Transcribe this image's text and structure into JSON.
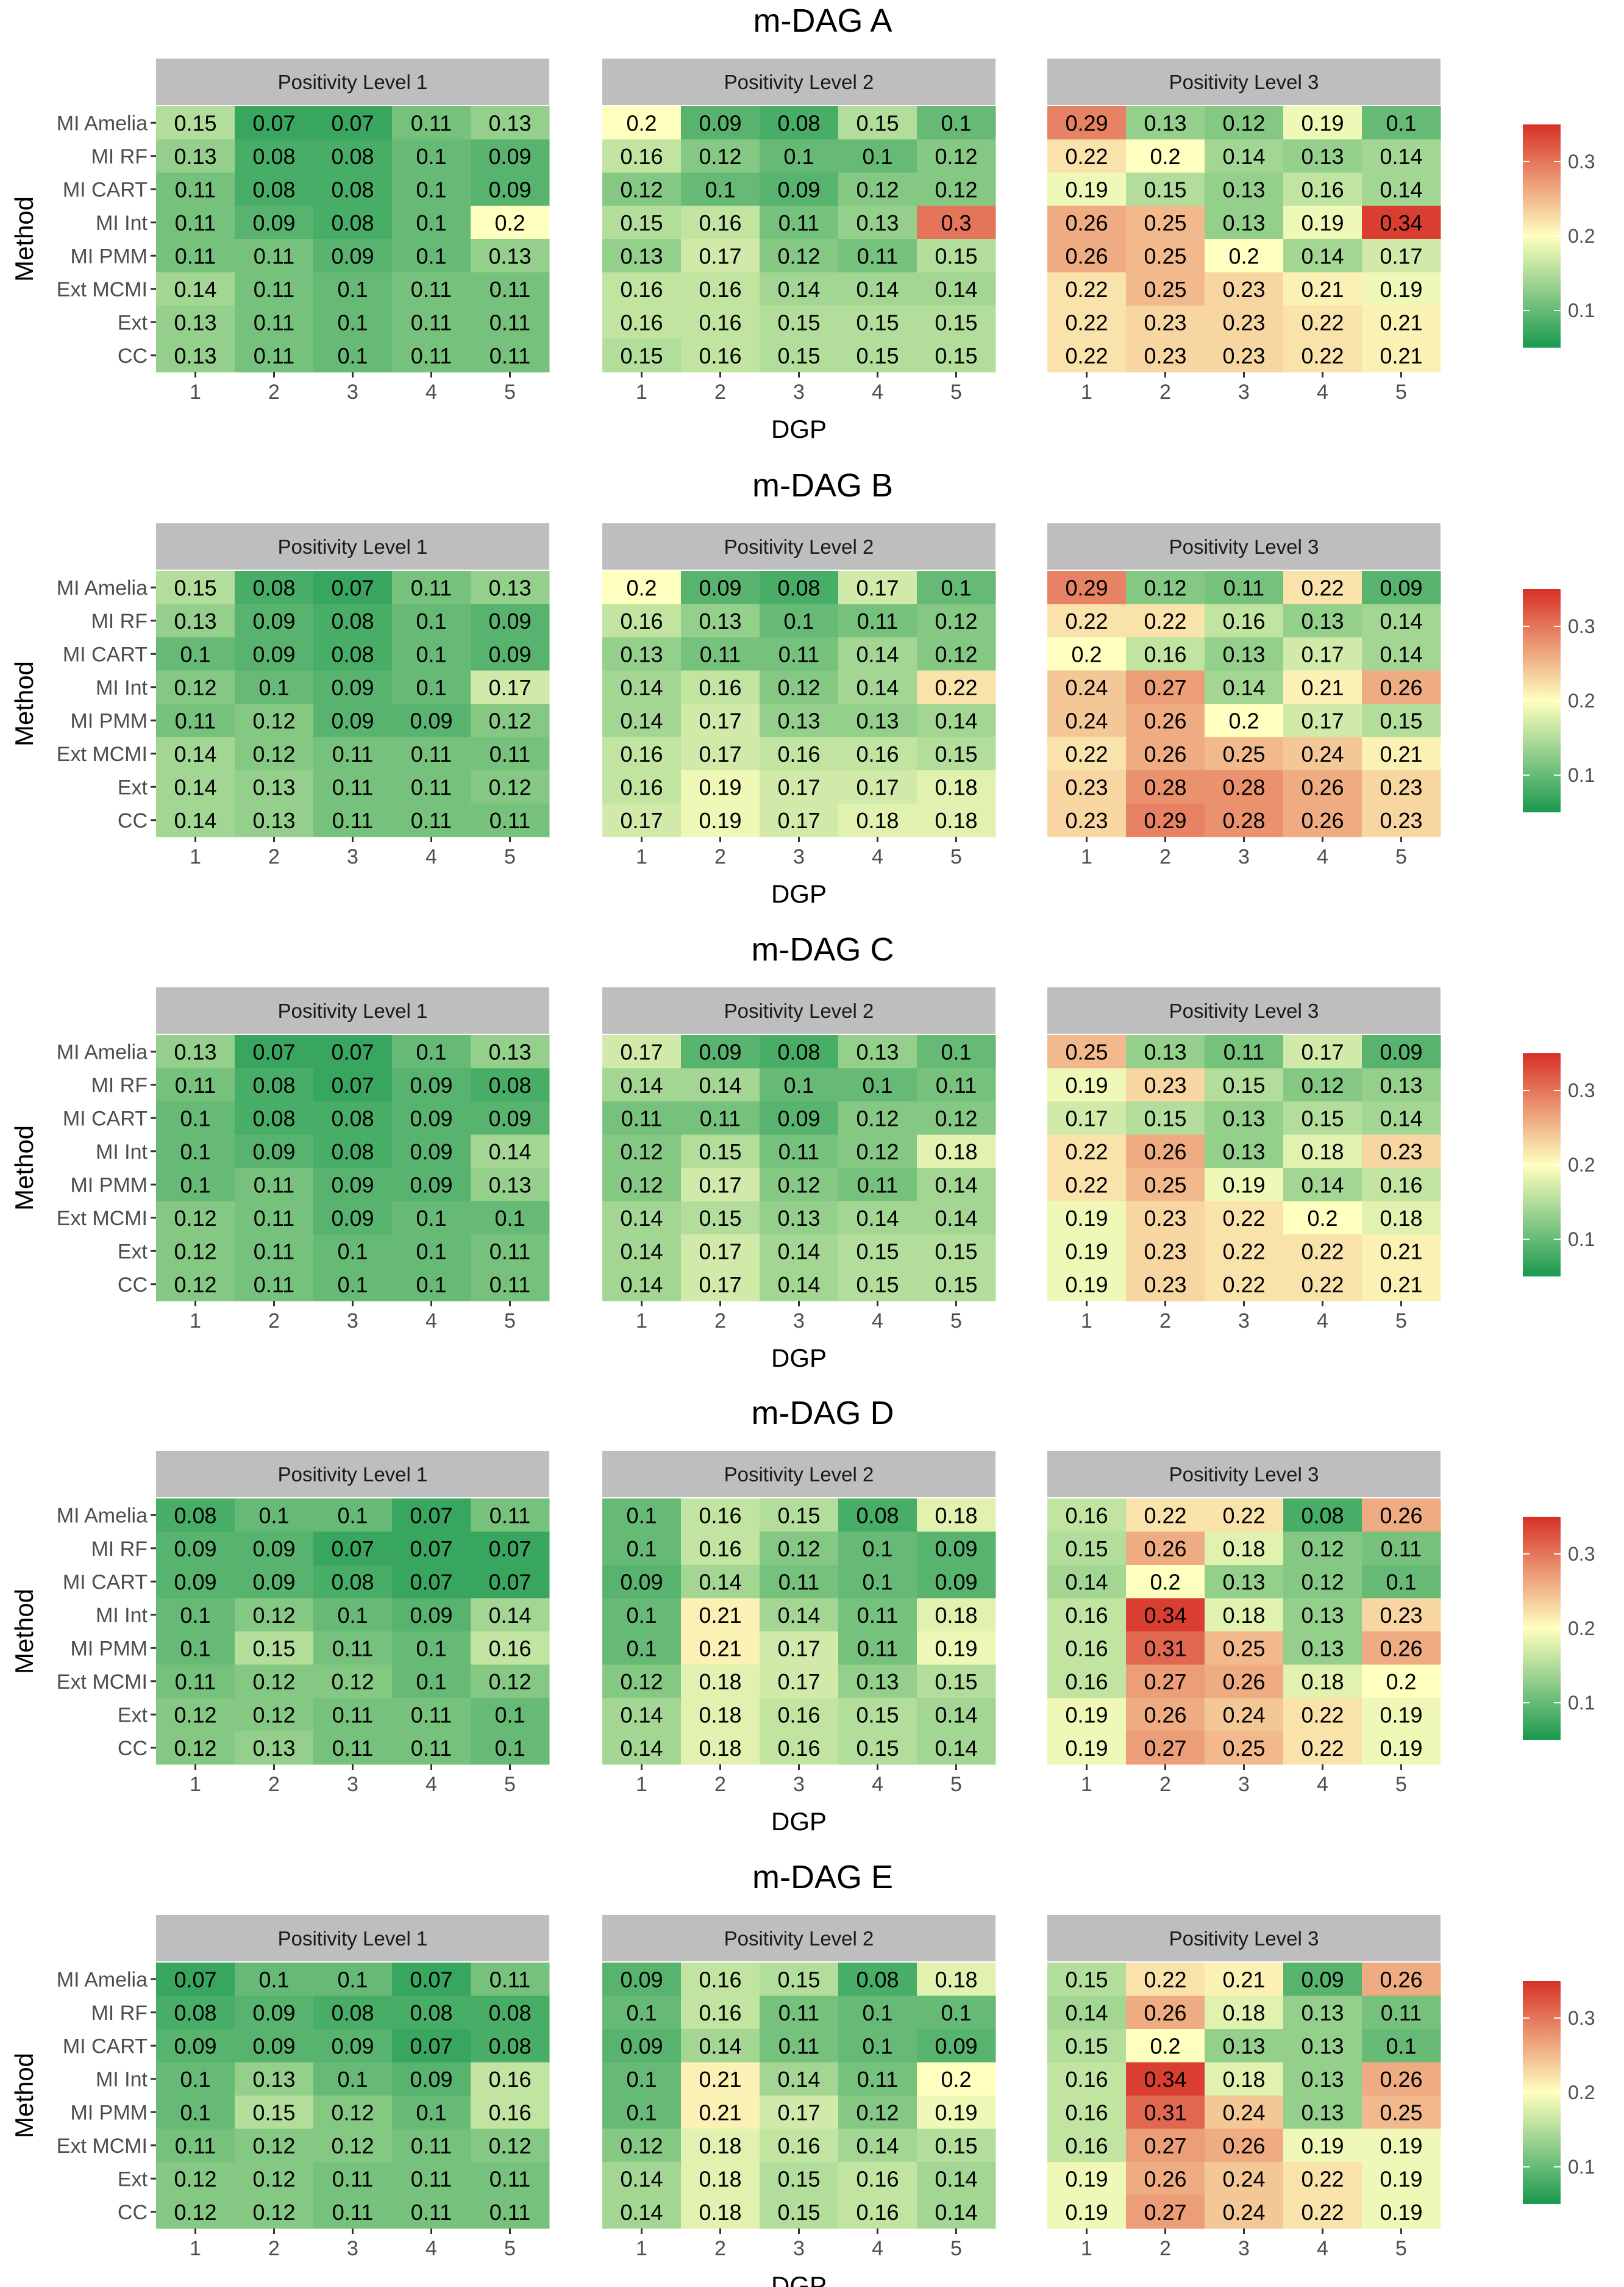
{
  "chart_data": {
    "type": "heatmap",
    "methods": [
      "MI Amelia",
      "MI RF",
      "MI CART",
      "MI Int",
      "MI PMM",
      "Ext MCMI",
      "Ext",
      "CC"
    ],
    "dgp": [
      "1",
      "2",
      "3",
      "4",
      "5"
    ],
    "facets": [
      "Positivity Level 1",
      "Positivity Level 2",
      "Positivity Level 3"
    ],
    "xlabel": "DGP",
    "ylabel": "Method",
    "color_scale": {
      "low": "#1a9850",
      "mid": "#ffffbf",
      "high": "#d73027",
      "midpoint": 0.2,
      "range": [
        0.05,
        0.35
      ],
      "ticks": [
        0.1,
        0.2,
        0.3
      ],
      "tick_labels": [
        "0.1",
        "0.2",
        "0.3"
      ]
    },
    "panels": [
      {
        "title": "m-DAG A",
        "values": [
          [
            [
              0.15,
              0.07,
              0.07,
              0.11,
              0.13
            ],
            [
              0.13,
              0.08,
              0.08,
              0.1,
              0.09
            ],
            [
              0.11,
              0.08,
              0.08,
              0.1,
              0.09
            ],
            [
              0.11,
              0.09,
              0.08,
              0.1,
              0.2
            ],
            [
              0.11,
              0.11,
              0.09,
              0.1,
              0.13
            ],
            [
              0.14,
              0.11,
              0.1,
              0.11,
              0.11
            ],
            [
              0.13,
              0.11,
              0.1,
              0.11,
              0.11
            ],
            [
              0.13,
              0.11,
              0.1,
              0.11,
              0.11
            ]
          ],
          [
            [
              0.2,
              0.09,
              0.08,
              0.15,
              0.1
            ],
            [
              0.16,
              0.12,
              0.1,
              0.1,
              0.12
            ],
            [
              0.12,
              0.1,
              0.09,
              0.12,
              0.12
            ],
            [
              0.15,
              0.16,
              0.11,
              0.13,
              0.3
            ],
            [
              0.13,
              0.17,
              0.12,
              0.11,
              0.15
            ],
            [
              0.16,
              0.16,
              0.14,
              0.14,
              0.14
            ],
            [
              0.16,
              0.16,
              0.15,
              0.15,
              0.15
            ],
            [
              0.15,
              0.16,
              0.15,
              0.15,
              0.15
            ]
          ],
          [
            [
              0.29,
              0.13,
              0.12,
              0.19,
              0.1
            ],
            [
              0.22,
              0.2,
              0.14,
              0.13,
              0.14
            ],
            [
              0.19,
              0.15,
              0.13,
              0.16,
              0.14
            ],
            [
              0.26,
              0.25,
              0.13,
              0.19,
              0.34
            ],
            [
              0.26,
              0.25,
              0.2,
              0.14,
              0.17
            ],
            [
              0.22,
              0.25,
              0.23,
              0.21,
              0.19
            ],
            [
              0.22,
              0.23,
              0.23,
              0.22,
              0.21
            ],
            [
              0.22,
              0.23,
              0.23,
              0.22,
              0.21
            ]
          ]
        ]
      },
      {
        "title": "m-DAG B",
        "values": [
          [
            [
              0.15,
              0.08,
              0.07,
              0.11,
              0.13
            ],
            [
              0.13,
              0.09,
              0.08,
              0.1,
              0.09
            ],
            [
              0.1,
              0.09,
              0.08,
              0.1,
              0.09
            ],
            [
              0.12,
              0.1,
              0.09,
              0.1,
              0.17
            ],
            [
              0.11,
              0.12,
              0.09,
              0.09,
              0.12
            ],
            [
              0.14,
              0.12,
              0.11,
              0.11,
              0.11
            ],
            [
              0.14,
              0.13,
              0.11,
              0.11,
              0.12
            ],
            [
              0.14,
              0.13,
              0.11,
              0.11,
              0.11
            ]
          ],
          [
            [
              0.2,
              0.09,
              0.08,
              0.17,
              0.1
            ],
            [
              0.16,
              0.13,
              0.1,
              0.11,
              0.12
            ],
            [
              0.13,
              0.11,
              0.11,
              0.14,
              0.12
            ],
            [
              0.14,
              0.16,
              0.12,
              0.14,
              0.22
            ],
            [
              0.14,
              0.17,
              0.13,
              0.13,
              0.14
            ],
            [
              0.16,
              0.17,
              0.16,
              0.16,
              0.15
            ],
            [
              0.16,
              0.19,
              0.17,
              0.17,
              0.18
            ],
            [
              0.17,
              0.19,
              0.17,
              0.18,
              0.18
            ]
          ],
          [
            [
              0.29,
              0.12,
              0.11,
              0.22,
              0.09
            ],
            [
              0.22,
              0.22,
              0.16,
              0.13,
              0.14
            ],
            [
              0.2,
              0.16,
              0.13,
              0.17,
              0.14
            ],
            [
              0.24,
              0.27,
              0.14,
              0.21,
              0.26
            ],
            [
              0.24,
              0.26,
              0.2,
              0.17,
              0.15
            ],
            [
              0.22,
              0.26,
              0.25,
              0.24,
              0.21
            ],
            [
              0.23,
              0.28,
              0.28,
              0.26,
              0.23
            ],
            [
              0.23,
              0.29,
              0.28,
              0.26,
              0.23
            ]
          ]
        ]
      },
      {
        "title": "m-DAG C",
        "values": [
          [
            [
              0.13,
              0.07,
              0.07,
              0.1,
              0.13
            ],
            [
              0.11,
              0.08,
              0.07,
              0.09,
              0.08
            ],
            [
              0.1,
              0.08,
              0.08,
              0.09,
              0.09
            ],
            [
              0.1,
              0.09,
              0.08,
              0.09,
              0.14
            ],
            [
              0.1,
              0.11,
              0.09,
              0.09,
              0.13
            ],
            [
              0.12,
              0.11,
              0.09,
              0.1,
              0.1
            ],
            [
              0.12,
              0.11,
              0.1,
              0.1,
              0.11
            ],
            [
              0.12,
              0.11,
              0.1,
              0.1,
              0.11
            ]
          ],
          [
            [
              0.17,
              0.09,
              0.08,
              0.13,
              0.1
            ],
            [
              0.14,
              0.14,
              0.1,
              0.1,
              0.11
            ],
            [
              0.11,
              0.11,
              0.09,
              0.12,
              0.12
            ],
            [
              0.12,
              0.15,
              0.11,
              0.12,
              0.18
            ],
            [
              0.12,
              0.17,
              0.12,
              0.11,
              0.14
            ],
            [
              0.14,
              0.15,
              0.13,
              0.14,
              0.14
            ],
            [
              0.14,
              0.17,
              0.14,
              0.15,
              0.15
            ],
            [
              0.14,
              0.17,
              0.14,
              0.15,
              0.15
            ]
          ],
          [
            [
              0.25,
              0.13,
              0.11,
              0.17,
              0.09
            ],
            [
              0.19,
              0.23,
              0.15,
              0.12,
              0.13
            ],
            [
              0.17,
              0.15,
              0.13,
              0.15,
              0.14
            ],
            [
              0.22,
              0.26,
              0.13,
              0.18,
              0.23
            ],
            [
              0.22,
              0.25,
              0.19,
              0.14,
              0.16
            ],
            [
              0.19,
              0.23,
              0.22,
              0.2,
              0.18
            ],
            [
              0.19,
              0.23,
              0.22,
              0.22,
              0.21
            ],
            [
              0.19,
              0.23,
              0.22,
              0.22,
              0.21
            ]
          ]
        ]
      },
      {
        "title": "m-DAG D",
        "values": [
          [
            [
              0.08,
              0.1,
              0.1,
              0.07,
              0.11
            ],
            [
              0.09,
              0.09,
              0.07,
              0.07,
              0.07
            ],
            [
              0.09,
              0.09,
              0.08,
              0.07,
              0.07
            ],
            [
              0.1,
              0.12,
              0.1,
              0.09,
              0.14
            ],
            [
              0.1,
              0.15,
              0.11,
              0.1,
              0.16
            ],
            [
              0.11,
              0.12,
              0.12,
              0.1,
              0.12
            ],
            [
              0.12,
              0.12,
              0.11,
              0.11,
              0.1
            ],
            [
              0.12,
              0.13,
              0.11,
              0.11,
              0.1
            ]
          ],
          [
            [
              0.1,
              0.16,
              0.15,
              0.08,
              0.18
            ],
            [
              0.1,
              0.16,
              0.12,
              0.1,
              0.09
            ],
            [
              0.09,
              0.14,
              0.11,
              0.1,
              0.09
            ],
            [
              0.1,
              0.21,
              0.14,
              0.11,
              0.18
            ],
            [
              0.1,
              0.21,
              0.17,
              0.11,
              0.19
            ],
            [
              0.12,
              0.18,
              0.17,
              0.13,
              0.15
            ],
            [
              0.14,
              0.18,
              0.16,
              0.15,
              0.14
            ],
            [
              0.14,
              0.18,
              0.16,
              0.15,
              0.14
            ]
          ],
          [
            [
              0.16,
              0.22,
              0.22,
              0.08,
              0.26
            ],
            [
              0.15,
              0.26,
              0.18,
              0.12,
              0.11
            ],
            [
              0.14,
              0.2,
              0.13,
              0.12,
              0.1
            ],
            [
              0.16,
              0.34,
              0.18,
              0.13,
              0.23
            ],
            [
              0.16,
              0.31,
              0.25,
              0.13,
              0.26
            ],
            [
              0.16,
              0.27,
              0.26,
              0.18,
              0.2
            ],
            [
              0.19,
              0.26,
              0.24,
              0.22,
              0.19
            ],
            [
              0.19,
              0.27,
              0.25,
              0.22,
              0.19
            ]
          ]
        ]
      },
      {
        "title": "m-DAG E",
        "values": [
          [
            [
              0.07,
              0.1,
              0.1,
              0.07,
              0.11
            ],
            [
              0.08,
              0.09,
              0.08,
              0.08,
              0.08
            ],
            [
              0.09,
              0.09,
              0.09,
              0.07,
              0.08
            ],
            [
              0.1,
              0.13,
              0.1,
              0.09,
              0.16
            ],
            [
              0.1,
              0.15,
              0.12,
              0.1,
              0.16
            ],
            [
              0.11,
              0.12,
              0.12,
              0.11,
              0.12
            ],
            [
              0.12,
              0.12,
              0.11,
              0.11,
              0.11
            ],
            [
              0.12,
              0.12,
              0.11,
              0.11,
              0.11
            ]
          ],
          [
            [
              0.09,
              0.16,
              0.15,
              0.08,
              0.18
            ],
            [
              0.1,
              0.16,
              0.11,
              0.1,
              0.1
            ],
            [
              0.09,
              0.14,
              0.11,
              0.1,
              0.09
            ],
            [
              0.1,
              0.21,
              0.14,
              0.11,
              0.2
            ],
            [
              0.1,
              0.21,
              0.17,
              0.12,
              0.19
            ],
            [
              0.12,
              0.18,
              0.16,
              0.14,
              0.15
            ],
            [
              0.14,
              0.18,
              0.15,
              0.16,
              0.14
            ],
            [
              0.14,
              0.18,
              0.15,
              0.16,
              0.14
            ]
          ],
          [
            [
              0.15,
              0.22,
              0.21,
              0.09,
              0.26
            ],
            [
              0.14,
              0.26,
              0.18,
              0.13,
              0.11
            ],
            [
              0.15,
              0.2,
              0.13,
              0.13,
              0.1
            ],
            [
              0.16,
              0.34,
              0.18,
              0.13,
              0.26
            ],
            [
              0.16,
              0.31,
              0.24,
              0.13,
              0.25
            ],
            [
              0.16,
              0.27,
              0.26,
              0.19,
              0.19
            ],
            [
              0.19,
              0.26,
              0.24,
              0.22,
              0.19
            ],
            [
              0.19,
              0.27,
              0.24,
              0.22,
              0.19
            ]
          ]
        ]
      }
    ]
  }
}
